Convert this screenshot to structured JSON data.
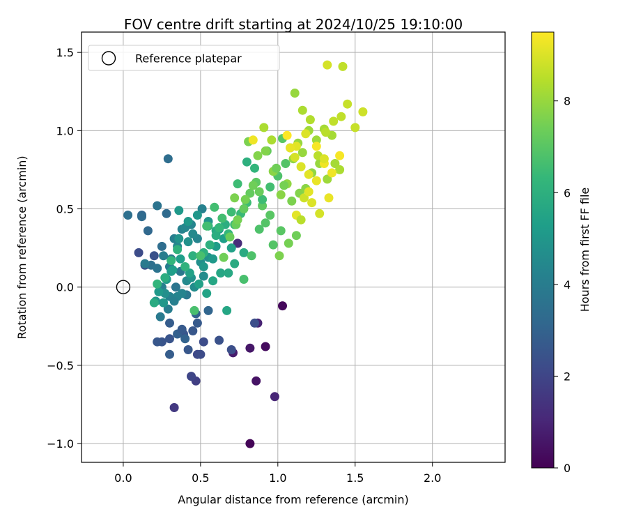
{
  "chart_data": {
    "type": "scatter",
    "title": "FOV centre drift starting at 2024/10/25 19:10:00",
    "xlabel": "Angular distance from reference (arcmin)",
    "ylabel": "Rotation from reference (arcmin)",
    "xlim": [
      -0.27,
      2.47
    ],
    "ylim": [
      -1.12,
      1.63
    ],
    "xticks": [
      0.0,
      0.5,
      1.0,
      1.5,
      2.0
    ],
    "xtick_labels": [
      "0.0",
      "0.5",
      "1.0",
      "1.5",
      "2.0"
    ],
    "yticks": [
      -1.0,
      -0.5,
      0.0,
      0.5,
      1.0,
      1.5
    ],
    "ytick_labels": [
      "−1.0",
      "−0.5",
      "0.0",
      "0.5",
      "1.0",
      "1.5"
    ],
    "grid": true,
    "legend": {
      "placement": "upper-left",
      "entries": [
        "Reference platepar"
      ]
    },
    "reference_point": {
      "x": 0.0,
      "y": 0.0
    },
    "colorbar": {
      "label": "Hours from first FF file",
      "colormap": "viridis",
      "range": [
        0,
        9.5
      ],
      "ticks": [
        0,
        2,
        4,
        6,
        8
      ],
      "tick_labels": [
        "0",
        "2",
        "4",
        "6",
        "8"
      ]
    },
    "colormap_stops": [
      "#440154",
      "#482878",
      "#3e4989",
      "#31688e",
      "#26828e",
      "#1f9e89",
      "#35b779",
      "#6ece58",
      "#b5de2b",
      "#fde725"
    ],
    "series": [
      {
        "x": [
          0.82,
          1.03,
          0.92,
          0.86,
          0.82,
          0.71,
          0.87,
          0.98,
          0.74,
          0.33,
          0.47,
          0.44,
          0.48,
          0.52,
          0.7,
          0.62,
          0.39,
          0.3,
          0.42,
          0.48,
          0.25,
          0.22,
          0.3,
          0.35,
          0.4,
          0.47,
          0.55,
          0.85,
          0.5,
          0.45,
          0.38,
          0.3,
          0.12,
          0.16,
          0.28,
          0.1,
          0.14,
          0.2,
          0.25,
          0.18,
          0.22,
          0.28,
          0.34,
          0.41,
          0.37,
          0.31,
          0.03,
          0.12,
          0.14,
          0.22,
          0.26,
          0.3,
          0.33,
          0.38,
          0.44,
          0.48,
          0.51,
          0.35,
          0.4,
          0.45,
          0.29,
          0.25,
          0.3,
          0.35,
          0.41,
          0.46,
          0.52,
          0.5,
          0.55,
          0.42,
          0.36,
          0.27,
          0.21,
          0.24,
          0.29,
          0.33,
          0.38,
          0.44,
          0.52,
          0.58,
          0.6,
          0.65,
          0.7,
          0.62,
          0.55,
          0.48,
          0.42,
          0.36,
          0.31,
          0.26,
          0.23,
          0.28,
          0.32,
          0.37,
          0.43,
          0.49,
          0.54,
          0.58,
          0.63,
          0.67,
          0.6,
          0.68,
          0.72,
          0.78,
          0.66,
          0.6,
          0.56,
          0.52,
          0.45,
          0.4,
          0.35,
          0.31,
          0.27,
          0.22,
          0.2,
          0.55,
          0.62,
          0.68,
          0.72,
          0.76,
          0.8,
          0.74,
          0.7,
          0.64,
          0.59,
          0.54,
          0.5,
          0.46,
          0.78,
          0.83,
          0.88,
          0.92,
          0.97,
          1.02,
          0.95,
          0.9,
          0.86,
          0.82,
          0.78,
          0.73,
          0.69,
          0.65,
          0.8,
          0.85,
          0.9,
          0.95,
          1.0,
          1.05,
          1.08,
          1.03,
          0.98,
          0.93,
          0.88,
          0.84,
          0.79,
          0.74,
          0.72,
          0.81,
          0.87,
          0.92,
          0.97,
          1.02,
          1.06,
          1.1,
          1.13,
          1.16,
          1.2,
          1.25,
          1.3,
          1.35,
          0.91,
          0.96,
          0.99,
          1.04,
          1.09,
          1.14,
          1.18,
          1.22,
          1.27,
          1.32,
          1.37,
          1.4,
          1.12,
          1.07,
          1.01,
          1.11,
          1.16,
          1.21,
          1.26,
          1.31,
          1.36,
          1.41,
          1.45,
          1.5,
          1.55,
          1.42,
          1.32,
          1.18,
          1.12,
          1.08,
          1.15,
          1.2,
          1.25,
          1.3,
          1.35,
          1.4,
          1.22,
          1.27,
          1.33,
          1.17,
          1.12,
          0.84,
          1.11,
          1.06,
          1.25,
          1.3,
          1.2,
          1.15
        ],
        "y": [
          -1.0,
          -0.12,
          -0.38,
          -0.6,
          -0.39,
          -0.42,
          -0.23,
          -0.7,
          0.28,
          -0.77,
          -0.6,
          -0.57,
          -0.43,
          -0.35,
          -0.4,
          -0.34,
          -0.3,
          -0.33,
          -0.4,
          -0.23,
          -0.35,
          -0.35,
          -0.23,
          -0.3,
          -0.33,
          -0.17,
          -0.15,
          -0.23,
          -0.43,
          -0.28,
          -0.27,
          -0.43,
          0.46,
          0.36,
          0.47,
          0.22,
          0.14,
          0.2,
          0.26,
          0.14,
          0.12,
          0.05,
          0.0,
          -0.05,
          0.1,
          0.18,
          0.46,
          0.45,
          0.15,
          0.52,
          0.2,
          0.13,
          0.31,
          0.37,
          0.4,
          0.31,
          0.5,
          0.26,
          0.38,
          0.34,
          0.82,
          0.0,
          -0.06,
          -0.06,
          0.04,
          0.0,
          0.07,
          0.16,
          0.19,
          0.29,
          0.31,
          -0.04,
          -0.09,
          -0.19,
          -0.14,
          -0.09,
          -0.04,
          0.06,
          0.13,
          0.18,
          0.26,
          0.31,
          0.25,
          0.37,
          0.42,
          0.46,
          0.42,
          0.49,
          0.1,
          -0.1,
          -0.03,
          0.05,
          0.11,
          0.18,
          0.09,
          0.02,
          -0.04,
          0.04,
          0.09,
          -0.15,
          0.36,
          0.09,
          0.15,
          0.22,
          0.4,
          0.33,
          0.27,
          0.22,
          0.2,
          0.13,
          0.24,
          0.17,
          0.06,
          0.02,
          -0.1,
          0.39,
          0.38,
          0.34,
          0.4,
          0.47,
          0.54,
          0.66,
          0.48,
          0.44,
          0.51,
          0.39,
          0.2,
          -0.15,
          0.05,
          0.2,
          0.37,
          0.41,
          0.27,
          0.36,
          0.46,
          0.52,
          0.67,
          0.6,
          0.5,
          0.4,
          0.32,
          0.19,
          0.8,
          0.76,
          0.56,
          0.64,
          0.71,
          0.79,
          0.89,
          0.95,
          0.74,
          0.87,
          0.61,
          0.65,
          0.56,
          0.43,
          0.57,
          0.93,
          0.84,
          0.87,
          0.74,
          0.59,
          0.66,
          0.82,
          0.92,
          0.86,
          1.0,
          0.94,
          1.01,
          0.97,
          1.02,
          0.94,
          0.76,
          0.65,
          0.55,
          0.6,
          0.63,
          0.73,
          0.79,
          0.69,
          0.79,
          0.75,
          0.33,
          0.28,
          0.2,
          1.24,
          1.13,
          1.07,
          0.84,
          0.99,
          1.06,
          1.09,
          1.17,
          1.02,
          1.12,
          1.41,
          1.42,
          0.98,
          0.9,
          0.89,
          0.77,
          0.72,
          0.68,
          0.79,
          0.73,
          0.84,
          0.54,
          0.47,
          0.57,
          0.57,
          0.46,
          0.94,
          0.83,
          0.97,
          0.9,
          0.82,
          0.61,
          0.43
        ],
        "hours": [
          0.1,
          0.2,
          0.3,
          0.5,
          0.6,
          0.7,
          0.9,
          1.0,
          1.2,
          1.6,
          1.8,
          2.0,
          2.1,
          2.2,
          2.3,
          2.4,
          2.5,
          2.5,
          2.6,
          2.7,
          2.5,
          2.6,
          2.8,
          2.9,
          3.0,
          3.0,
          3.1,
          2.3,
          2.2,
          2.6,
          2.7,
          2.8,
          3.1,
          3.2,
          3.3,
          2.2,
          2.3,
          2.4,
          3.4,
          3.5,
          3.6,
          3.6,
          3.7,
          3.8,
          3.8,
          3.9,
          3.5,
          3.3,
          3.9,
          3.6,
          4.0,
          4.0,
          4.1,
          4.2,
          4.3,
          4.3,
          4.2,
          4.4,
          4.4,
          4.5,
          3.4,
          4.1,
          4.2,
          4.3,
          4.5,
          4.6,
          4.6,
          4.7,
          4.8,
          4.8,
          4.9,
          4.7,
          4.9,
          3.9,
          4.0,
          4.1,
          4.3,
          4.8,
          5.0,
          5.1,
          5.2,
          5.3,
          5.4,
          5.0,
          4.9,
          5.0,
          5.1,
          5.1,
          5.2,
          5.0,
          5.1,
          5.2,
          5.3,
          5.3,
          5.4,
          5.4,
          5.5,
          5.6,
          5.6,
          5.6,
          5.7,
          5.7,
          5.8,
          5.8,
          5.9,
          5.9,
          6.0,
          6.0,
          6.0,
          6.1,
          6.1,
          6.2,
          5.9,
          6.2,
          5.8,
          6.2,
          6.3,
          6.3,
          6.4,
          6.4,
          6.5,
          6.5,
          6.5,
          6.6,
          6.6,
          6.6,
          6.7,
          6.7,
          6.7,
          6.8,
          6.8,
          6.9,
          6.9,
          7.0,
          7.0,
          7.1,
          7.1,
          7.2,
          7.2,
          7.3,
          7.3,
          7.4,
          6.0,
          6.2,
          6.5,
          6.6,
          6.8,
          6.9,
          7.0,
          7.0,
          7.1,
          7.2,
          7.3,
          7.4,
          7.5,
          7.5,
          7.6,
          7.6,
          7.7,
          7.7,
          7.8,
          7.8,
          7.9,
          7.9,
          8.0,
          8.0,
          8.1,
          8.1,
          8.2,
          8.2,
          8.3,
          8.3,
          7.4,
          7.5,
          7.6,
          7.7,
          7.8,
          7.9,
          8.0,
          8.1,
          8.2,
          8.3,
          7.4,
          7.5,
          7.6,
          8.0,
          8.3,
          8.4,
          8.5,
          8.5,
          8.6,
          8.6,
          8.7,
          8.7,
          8.8,
          8.6,
          8.9,
          9.0,
          9.1,
          9.2,
          9.0,
          9.1,
          9.2,
          9.3,
          9.3,
          9.4,
          9.0,
          8.9,
          9.2,
          8.8,
          9.1,
          9.3,
          8.9,
          9.5,
          9.4,
          9.0,
          9.1,
          8.5
        ]
      }
    ]
  }
}
